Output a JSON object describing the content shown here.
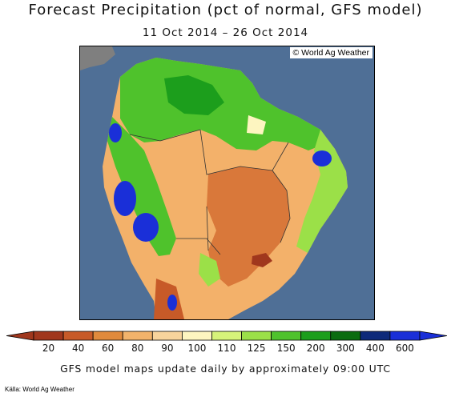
{
  "header": {
    "title": "Forecast Precipitation (pct of normal, GFS model)",
    "date_range": "11 Oct 2014 – 26 Oct 2014"
  },
  "map": {
    "copyright": "© World Ag Weather",
    "colors": {
      "ocean": "#4f6f96",
      "land_unknown": "#7f7f7f",
      "border": "#333333"
    }
  },
  "legend": {
    "labels": [
      "20",
      "40",
      "60",
      "80",
      "90",
      "100",
      "110",
      "125",
      "150",
      "200",
      "300",
      "400",
      "600"
    ],
    "colors": [
      "#a0371d",
      "#c75a28",
      "#e08a3c",
      "#f2b36b",
      "#f8d49c",
      "#fdf5c0",
      "#d6f37a",
      "#9be048",
      "#4fc22c",
      "#1c9e1c",
      "#0b6c10",
      "#0e2a7a",
      "#1a2fd8"
    ]
  },
  "footer": {
    "note": "GFS model maps update daily by approximately 09:00 UTC",
    "source": "Källa: World Ag Weather"
  }
}
